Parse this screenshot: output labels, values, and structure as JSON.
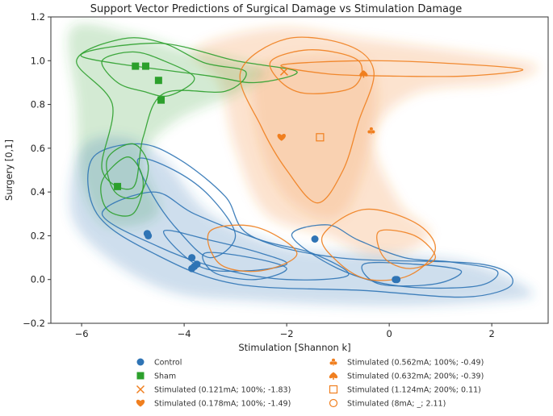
{
  "chart_data": {
    "type": "scatter",
    "title": "Support Vector Predictions of Surgical Damage vs Stimulation Damage",
    "xlabel": "Stimulation [Shannon k]",
    "ylabel": "Surgery [0,1]",
    "xlim": [
      -6.6,
      3.1
    ],
    "ylim": [
      -0.2,
      1.2
    ],
    "xticks": [
      -6,
      -4,
      -2,
      0,
      2
    ],
    "yticks": [
      -0.2,
      0.0,
      0.2,
      0.4,
      0.6,
      0.8,
      1.0,
      1.2
    ],
    "xtick_labels": [
      "−6",
      "−4",
      "−2",
      "0",
      "2"
    ],
    "ytick_labels": [
      "−0.2",
      "0.0",
      "0.2",
      "0.4",
      "0.6",
      "0.8",
      "1.0",
      "1.2"
    ],
    "grid": false,
    "legend_position": "bottom-center",
    "series": [
      {
        "name": "Control",
        "color": "#2f74b5",
        "marker": "circle",
        "x": [
          -4.7,
          -4.72,
          -3.85,
          -3.8,
          -3.75,
          -3.85,
          -1.45,
          0.12,
          0.15
        ],
        "y": [
          0.2,
          0.21,
          0.1,
          0.06,
          0.07,
          0.05,
          0.185,
          0.0,
          0.0
        ]
      },
      {
        "name": "Sham",
        "color": "#2ca02c",
        "marker": "square",
        "x": [
          -4.95,
          -4.75,
          -4.5,
          -4.45,
          -5.3
        ],
        "y": [
          0.975,
          0.975,
          0.91,
          0.82,
          0.425
        ]
      },
      {
        "name": "Stimulated (0.121mA; 100%; -1.83)",
        "color": "#f07f1f",
        "marker": "x",
        "x": [
          -2.05
        ],
        "y": [
          0.95
        ]
      },
      {
        "name": "Stimulated (0.178mA; 100%; -1.49)",
        "color": "#f07f1f",
        "marker": "heart",
        "x": [
          -2.1
        ],
        "y": [
          0.65
        ]
      },
      {
        "name": "Stimulated (0.562mA; 100%; -0.49)",
        "color": "#f07f1f",
        "marker": "triangle",
        "x": [
          -0.35
        ],
        "y": [
          0.68
        ]
      },
      {
        "name": "Stimulated (0.632mA; 200%; -0.39)",
        "color": "#f07f1f",
        "marker": "spade",
        "x": [
          -0.5
        ],
        "y": [
          0.94
        ]
      },
      {
        "name": "Stimulated (1.124mA; 200%; 0.11)",
        "color": "#f07f1f",
        "marker": "square-open",
        "x": [
          -1.35
        ],
        "y": [
          0.65
        ]
      },
      {
        "name": "Stimulated (8mA; _; 2.11)",
        "color": "#f07f1f",
        "marker": "circle-open",
        "x": [],
        "y": []
      }
    ],
    "legend": [
      {
        "label": "Control",
        "marker": "circle",
        "color": "#2f74b5"
      },
      {
        "label": "Sham",
        "marker": "square",
        "color": "#2ca02c"
      },
      {
        "label": "Stimulated (0.121mA; 100%; -1.83)",
        "marker": "x",
        "color": "#f07f1f"
      },
      {
        "label": "Stimulated (0.178mA; 100%; -1.49)",
        "marker": "heart",
        "color": "#f07f1f"
      },
      {
        "label": "Stimulated (0.562mA; 100%; -0.49)",
        "marker": "triangle",
        "color": "#f07f1f"
      },
      {
        "label": "Stimulated (0.632mA; 200%; -0.39)",
        "marker": "spade",
        "color": "#f07f1f"
      },
      {
        "label": "Stimulated (1.124mA; 200%; 0.11)",
        "marker": "square-open",
        "color": "#f07f1f"
      },
      {
        "label": "Stimulated (8mA; _; 2.11)",
        "marker": "circle-open",
        "color": "#f07f1f"
      }
    ],
    "colors": {
      "control": "#2f74b5",
      "sham": "#2ca02c",
      "stimulated": "#f07f1f"
    }
  }
}
